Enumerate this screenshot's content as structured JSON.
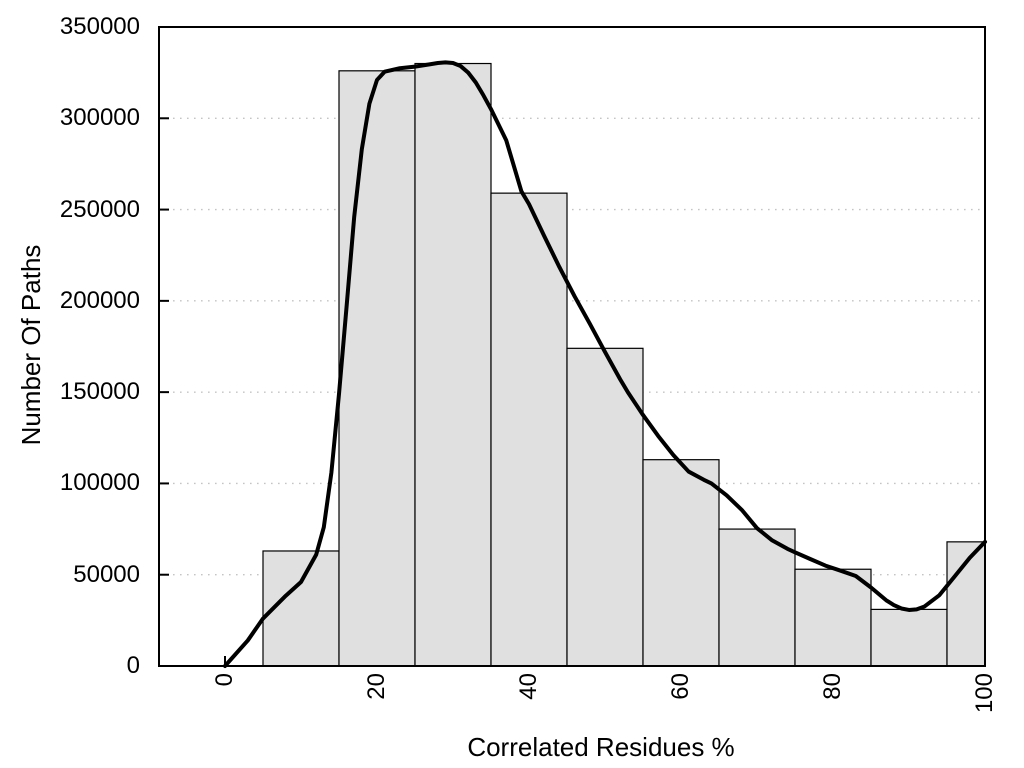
{
  "figure": {
    "background": "#ffffff"
  },
  "chart_data": {
    "type": "bar",
    "subtype": "histogram_with_smoothed_curve",
    "title": "",
    "xlabel": "Correlated Residues %",
    "ylabel": "Number Of Paths",
    "xlim": [
      0,
      100
    ],
    "ylim": [
      0,
      350000
    ],
    "grid": "horizontal dotted lines at each y tick",
    "legend_position": "none",
    "xticks": [
      {
        "value": 0,
        "label": "0"
      },
      {
        "value": 20,
        "label": "20"
      },
      {
        "value": 40,
        "label": "40"
      },
      {
        "value": 60,
        "label": "60"
      },
      {
        "value": 80,
        "label": "80"
      },
      {
        "value": 100,
        "label": "100"
      }
    ],
    "yticks": [
      {
        "value": 0,
        "label": "0"
      },
      {
        "value": 50000,
        "label": "50000"
      },
      {
        "value": 100000,
        "label": "100000"
      },
      {
        "value": 150000,
        "label": "150000"
      },
      {
        "value": 200000,
        "label": "200000"
      },
      {
        "value": 250000,
        "label": "250000"
      },
      {
        "value": 300000,
        "label": "300000"
      },
      {
        "value": 350000,
        "label": "350000"
      }
    ],
    "bars": [
      {
        "x0": 5,
        "x1": 15,
        "value": 63000
      },
      {
        "x0": 15,
        "x1": 25,
        "value": 326000
      },
      {
        "x0": 25,
        "x1": 35,
        "value": 330000
      },
      {
        "x0": 35,
        "x1": 45,
        "value": 259000
      },
      {
        "x0": 45,
        "x1": 55,
        "value": 174000
      },
      {
        "x0": 55,
        "x1": 65,
        "value": 113000
      },
      {
        "x0": 65,
        "x1": 75,
        "value": 75000
      },
      {
        "x0": 75,
        "x1": 85,
        "value": 53000
      },
      {
        "x0": 85,
        "x1": 95,
        "value": 31000
      },
      {
        "x0": 95,
        "x1": 100,
        "value": 68000
      }
    ],
    "curve": {
      "name": "smoothed-trend-line",
      "points": [
        [
          0,
          0
        ],
        [
          3,
          14000
        ],
        [
          5,
          26000
        ],
        [
          8,
          38500
        ],
        [
          10,
          46000
        ],
        [
          12,
          61000
        ],
        [
          13,
          76000
        ],
        [
          14,
          106000
        ],
        [
          15,
          149000
        ],
        [
          16,
          197000
        ],
        [
          17,
          246000
        ],
        [
          18,
          283000
        ],
        [
          19,
          308000
        ],
        [
          20,
          321000
        ],
        [
          21,
          325500
        ],
        [
          23,
          327400
        ],
        [
          25,
          328300
        ],
        [
          27,
          329600
        ],
        [
          28,
          330300
        ],
        [
          29,
          330600
        ],
        [
          30,
          330300
        ],
        [
          31,
          328600
        ],
        [
          32,
          325000
        ],
        [
          33,
          319600
        ],
        [
          34,
          312600
        ],
        [
          35,
          305000
        ],
        [
          37,
          288000
        ],
        [
          39,
          260000
        ],
        [
          40,
          253000
        ],
        [
          42,
          235500
        ],
        [
          44,
          218500
        ],
        [
          46,
          202500
        ],
        [
          48,
          187500
        ],
        [
          50,
          172000
        ],
        [
          52,
          157000
        ],
        [
          53,
          150000
        ],
        [
          55,
          137500
        ],
        [
          57,
          126000
        ],
        [
          59,
          115500
        ],
        [
          61,
          106500
        ],
        [
          63,
          102000
        ],
        [
          64,
          100000
        ],
        [
          66,
          93500
        ],
        [
          68,
          85500
        ],
        [
          70,
          75500
        ],
        [
          72,
          68800
        ],
        [
          74,
          64200
        ],
        [
          75,
          62300
        ],
        [
          77,
          58600
        ],
        [
          79,
          55000
        ],
        [
          81,
          52200
        ],
        [
          83,
          49300
        ],
        [
          85,
          43000
        ],
        [
          87,
          36000
        ],
        [
          88,
          33400
        ],
        [
          89,
          31500
        ],
        [
          90,
          30700
        ],
        [
          91,
          31000
        ],
        [
          92,
          32500
        ],
        [
          94,
          38800
        ],
        [
          96,
          49000
        ],
        [
          98,
          59300
        ],
        [
          100,
          68000
        ]
      ]
    },
    "colors": {
      "bar_fill": "#e0e0e0",
      "bar_stroke": "#000000",
      "curve": "#000000",
      "grid": "#c4c4c4",
      "axis": "#000000",
      "text": "#000000"
    }
  }
}
